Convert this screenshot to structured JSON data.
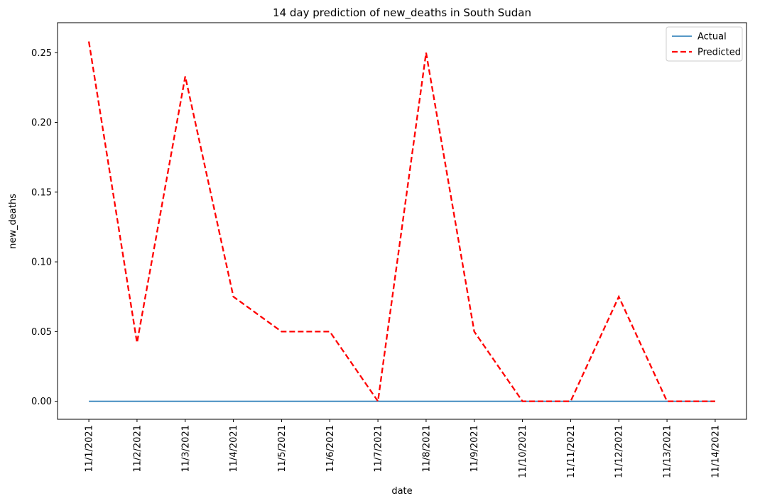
{
  "chart_data": {
    "type": "line",
    "title": "14 day prediction of new_deaths in South Sudan",
    "xlabel": "date",
    "ylabel": "new_deaths",
    "x": [
      "11/1/2021",
      "11/2/2021",
      "11/3/2021",
      "11/4/2021",
      "11/5/2021",
      "11/6/2021",
      "11/7/2021",
      "11/8/2021",
      "11/9/2021",
      "11/10/2021",
      "11/11/2021",
      "11/12/2021",
      "11/13/2021",
      "11/14/2021"
    ],
    "ylim": [
      -0.0129,
      0.2715
    ],
    "yticks": [
      0.0,
      0.05,
      0.1,
      0.15,
      0.2,
      0.25
    ],
    "ytick_labels": [
      "0.00",
      "0.05",
      "0.10",
      "0.15",
      "0.20",
      "0.25"
    ],
    "grid": false,
    "legend_position": "top-right",
    "series": [
      {
        "name": "Actual",
        "color": "#1f77b4",
        "style": "solid",
        "values": [
          0,
          0,
          0,
          0,
          0,
          0,
          0,
          0,
          0,
          0,
          0,
          0,
          0,
          0
        ]
      },
      {
        "name": "Predicted",
        "color": "#ff0000",
        "style": "dashed",
        "values": [
          0.258,
          0.042,
          0.233,
          0.075,
          0.05,
          0.05,
          0.0,
          0.25,
          0.05,
          0.0,
          0.0,
          0.075,
          0.0,
          0.0
        ]
      }
    ]
  }
}
